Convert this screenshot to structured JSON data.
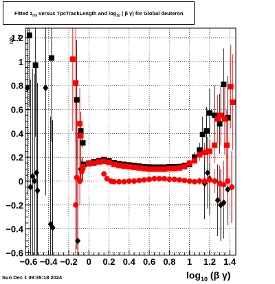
{
  "title": {
    "pre": "Fitted  z",
    "sub1": "I70",
    "mid": "  versus TpcTrackLength and log",
    "sub2": "10",
    "post": " ( β γ) for Global deuteron"
  },
  "datestamp": "Sun Dec  1 09:35:18 2024",
  "axes": {
    "ylabel_main": "z",
    "ylabel_sub": "I70",
    "xlabel_main": "log",
    "xlabel_sub": "10",
    "xlabel_post": "(β γ)"
  },
  "chart_data": {
    "type": "scatter",
    "xlim": [
      -0.63,
      1.46
    ],
    "ylim": [
      -0.62,
      1.28
    ],
    "x_ticks": [
      -0.6,
      -0.4,
      -0.2,
      0,
      0.2,
      0.4,
      0.6,
      0.8,
      1,
      1.2,
      1.4
    ],
    "x_tick_labels": [
      "−0.6",
      "−0.4",
      "−0.2",
      "0",
      "0.2",
      "0.4",
      "0.6",
      "0.8",
      "1",
      "1.2",
      "1.4"
    ],
    "y_ticks": [
      -0.6,
      -0.4,
      -0.2,
      0,
      0.2,
      0.4,
      0.6,
      0.8,
      1,
      1.2
    ],
    "y_tick_labels": [
      "−0.6",
      "−0.4",
      "−0.2",
      "0",
      "0.2",
      "0.4",
      "0.6",
      "0.8",
      "1",
      "1.2"
    ],
    "grid": true,
    "series": [
      {
        "color": "#000000",
        "marker": "square",
        "points": [
          {
            "x": -0.59,
            "y": 1.22,
            "e": 0.6
          },
          {
            "x": -0.53,
            "y": 0.97,
            "e": 0.6
          },
          {
            "x": -0.37,
            "y": 1.03,
            "e": 0.7
          },
          {
            "x": -0.12,
            "y": 0.68,
            "e": 0.5
          },
          {
            "x": -0.08,
            "y": 0.42,
            "e": 0.1
          },
          {
            "x": -0.06,
            "y": 0.32,
            "e": 0.04
          },
          {
            "x": -0.05,
            "y": 0.14,
            "e": 0.02
          },
          {
            "x": 0.0,
            "y": 0.15,
            "e": 0.02
          },
          {
            "x": 0.05,
            "y": 0.16,
            "e": 0.015
          },
          {
            "x": 0.1,
            "y": 0.17,
            "e": 0.015
          },
          {
            "x": 0.15,
            "y": 0.18,
            "e": 0.015
          },
          {
            "x": 0.2,
            "y": 0.17,
            "e": 0.01
          },
          {
            "x": 0.25,
            "y": 0.155,
            "e": 0.01
          },
          {
            "x": 0.3,
            "y": 0.145,
            "e": 0.01
          },
          {
            "x": 0.35,
            "y": 0.14,
            "e": 0.01
          },
          {
            "x": 0.4,
            "y": 0.135,
            "e": 0.01
          },
          {
            "x": 0.45,
            "y": 0.13,
            "e": 0.01
          },
          {
            "x": 0.5,
            "y": 0.125,
            "e": 0.01
          },
          {
            "x": 0.55,
            "y": 0.12,
            "e": 0.01
          },
          {
            "x": 0.6,
            "y": 0.118,
            "e": 0.01
          },
          {
            "x": 0.65,
            "y": 0.117,
            "e": 0.01
          },
          {
            "x": 0.7,
            "y": 0.117,
            "e": 0.01
          },
          {
            "x": 0.75,
            "y": 0.117,
            "e": 0.01
          },
          {
            "x": 0.8,
            "y": 0.12,
            "e": 0.01
          },
          {
            "x": 0.85,
            "y": 0.12,
            "e": 0.01
          },
          {
            "x": 0.9,
            "y": 0.122,
            "e": 0.01
          },
          {
            "x": 0.95,
            "y": 0.13,
            "e": 0.015
          },
          {
            "x": 1.0,
            "y": 0.14,
            "e": 0.02
          },
          {
            "x": 1.05,
            "y": 0.2,
            "e": 0.04
          },
          {
            "x": 1.1,
            "y": 0.26,
            "e": 0.06
          },
          {
            "x": 1.13,
            "y": 0.39,
            "e": 0.15
          },
          {
            "x": 1.17,
            "y": 0.42,
            "e": 0.2
          },
          {
            "x": 1.2,
            "y": 0.57,
            "e": 0.2
          },
          {
            "x": 1.25,
            "y": 0.55,
            "e": 0.25
          },
          {
            "x": 1.3,
            "y": 0.48,
            "e": 0.25
          },
          {
            "x": 1.34,
            "y": 0.81,
            "e": 0.3
          },
          {
            "x": 1.38,
            "y": 0.53,
            "e": 0.35
          }
        ]
      },
      {
        "color": "#000000",
        "marker": "diamond",
        "points": [
          {
            "x": -0.61,
            "y": 0.78,
            "e": 0.9
          },
          {
            "x": -0.58,
            "y": -0.05,
            "e": 0.9
          },
          {
            "x": -0.56,
            "y": 0.04,
            "e": 0.9
          },
          {
            "x": -0.54,
            "y": 0.0,
            "e": 0.9
          },
          {
            "x": -0.52,
            "y": 0.07,
            "e": 0.9
          },
          {
            "x": -0.51,
            "y": -0.08,
            "e": 0.9
          },
          {
            "x": -0.43,
            "y": 0.78,
            "e": 0.9
          },
          {
            "x": -0.38,
            "y": -0.36,
            "e": 0.9
          },
          {
            "x": -0.36,
            "y": -0.39,
            "e": 0.9
          },
          {
            "x": -0.11,
            "y": -0.5,
            "e": 0.9
          },
          {
            "x": -0.08,
            "y": 0.1,
            "e": 0.1
          },
          {
            "x": -0.06,
            "y": 0.1,
            "e": 0.1
          },
          {
            "x": 1.15,
            "y": -0.02,
            "e": 0.3
          },
          {
            "x": 1.18,
            "y": 0.07,
            "e": 0.3
          },
          {
            "x": 1.2,
            "y": 0.02,
            "e": 0.3
          },
          {
            "x": 1.28,
            "y": -0.16,
            "e": 0.3
          },
          {
            "x": 1.31,
            "y": -0.2,
            "e": 0.3
          },
          {
            "x": 1.34,
            "y": -0.18,
            "e": 0.3
          },
          {
            "x": 1.38,
            "y": -0.07,
            "e": 0.3
          },
          {
            "x": 1.42,
            "y": -0.05,
            "e": 0.3
          }
        ]
      },
      {
        "color": "#ff0000",
        "marker": "square",
        "points": [
          {
            "x": -0.16,
            "y": 1.02,
            "e": 0.6
          },
          {
            "x": -0.13,
            "y": 0.82,
            "e": 0.5
          },
          {
            "x": -0.09,
            "y": 0.48,
            "e": 0.3
          },
          {
            "x": -0.08,
            "y": 0.38,
            "e": 0.2
          },
          {
            "x": -0.06,
            "y": 0.12,
            "e": 0.05
          },
          {
            "x": 0.0,
            "y": 0.145,
            "e": 0.02
          },
          {
            "x": 0.05,
            "y": 0.15,
            "e": 0.02
          },
          {
            "x": 0.1,
            "y": 0.16,
            "e": 0.015
          },
          {
            "x": 0.15,
            "y": 0.165,
            "e": 0.015
          },
          {
            "x": 0.2,
            "y": 0.155,
            "e": 0.01
          },
          {
            "x": 0.25,
            "y": 0.14,
            "e": 0.01
          },
          {
            "x": 0.3,
            "y": 0.13,
            "e": 0.01
          },
          {
            "x": 0.35,
            "y": 0.125,
            "e": 0.01
          },
          {
            "x": 0.4,
            "y": 0.12,
            "e": 0.01
          },
          {
            "x": 0.45,
            "y": 0.115,
            "e": 0.01
          },
          {
            "x": 0.5,
            "y": 0.11,
            "e": 0.01
          },
          {
            "x": 0.55,
            "y": 0.105,
            "e": 0.01
          },
          {
            "x": 0.6,
            "y": 0.1,
            "e": 0.01
          },
          {
            "x": 0.65,
            "y": 0.1,
            "e": 0.01
          },
          {
            "x": 0.7,
            "y": 0.1,
            "e": 0.01
          },
          {
            "x": 0.75,
            "y": 0.1,
            "e": 0.01
          },
          {
            "x": 0.8,
            "y": 0.105,
            "e": 0.01
          },
          {
            "x": 0.85,
            "y": 0.105,
            "e": 0.01
          },
          {
            "x": 0.9,
            "y": 0.11,
            "e": 0.01
          },
          {
            "x": 0.95,
            "y": 0.12,
            "e": 0.015
          },
          {
            "x": 1.0,
            "y": 0.15,
            "e": 0.02
          },
          {
            "x": 1.05,
            "y": 0.17,
            "e": 0.03
          },
          {
            "x": 1.1,
            "y": 0.22,
            "e": 0.05
          },
          {
            "x": 1.15,
            "y": 0.24,
            "e": 0.08
          },
          {
            "x": 1.2,
            "y": 0.25,
            "e": 0.1
          },
          {
            "x": 1.25,
            "y": 0.3,
            "e": 0.15
          },
          {
            "x": 1.28,
            "y": 0.52,
            "e": 0.2
          },
          {
            "x": 1.31,
            "y": 0.55,
            "e": 0.25
          },
          {
            "x": 1.35,
            "y": 0.52,
            "e": 0.3
          },
          {
            "x": 1.37,
            "y": 0.3,
            "e": 0.3
          },
          {
            "x": 1.41,
            "y": 0.79,
            "e": 0.35
          },
          {
            "x": 1.43,
            "y": 0.66,
            "e": 0.4
          }
        ]
      },
      {
        "color": "#ff0000",
        "marker": "circle",
        "points": [
          {
            "x": -0.13,
            "y": -0.2,
            "e": 0.9
          },
          {
            "x": -0.12,
            "y": 0.03,
            "e": 0.6
          },
          {
            "x": -0.09,
            "y": 0.0,
            "e": 0.2
          },
          {
            "x": -0.07,
            "y": 0.08,
            "e": 0.1
          },
          {
            "x": 0.15,
            "y": 0.06,
            "e": 0.02
          },
          {
            "x": 0.18,
            "y": 0.02,
            "e": 0.015
          },
          {
            "x": 0.22,
            "y": 0.0,
            "e": 0.01
          },
          {
            "x": 0.25,
            "y": -0.005,
            "e": 0.01
          },
          {
            "x": 0.3,
            "y": -0.005,
            "e": 0.01
          },
          {
            "x": 0.35,
            "y": -0.005,
            "e": 0.01
          },
          {
            "x": 0.4,
            "y": 0.0,
            "e": 0.01
          },
          {
            "x": 0.45,
            "y": 0.0,
            "e": 0.01
          },
          {
            "x": 0.5,
            "y": 0.005,
            "e": 0.01
          },
          {
            "x": 0.55,
            "y": 0.01,
            "e": 0.01
          },
          {
            "x": 0.6,
            "y": 0.015,
            "e": 0.01
          },
          {
            "x": 0.65,
            "y": 0.02,
            "e": 0.01
          },
          {
            "x": 0.7,
            "y": 0.02,
            "e": 0.01
          },
          {
            "x": 0.75,
            "y": 0.02,
            "e": 0.01
          },
          {
            "x": 0.8,
            "y": 0.015,
            "e": 0.01
          },
          {
            "x": 0.85,
            "y": 0.015,
            "e": 0.01
          },
          {
            "x": 0.9,
            "y": 0.01,
            "e": 0.01
          },
          {
            "x": 0.95,
            "y": 0.005,
            "e": 0.01
          },
          {
            "x": 1.0,
            "y": 0.0,
            "e": 0.015
          },
          {
            "x": 1.05,
            "y": -0.005,
            "e": 0.02
          },
          {
            "x": 1.1,
            "y": 0.0,
            "e": 0.03
          },
          {
            "x": 1.15,
            "y": 0.0,
            "e": 0.05
          },
          {
            "x": 1.2,
            "y": 0.01,
            "e": 0.08
          },
          {
            "x": 1.25,
            "y": 0.0,
            "e": 0.1
          },
          {
            "x": 1.3,
            "y": -0.02,
            "e": 0.15
          },
          {
            "x": 1.34,
            "y": -0.03,
            "e": 0.2
          },
          {
            "x": 1.38,
            "y": 0.0,
            "e": 0.25
          },
          {
            "x": 1.42,
            "y": -0.05,
            "e": 0.3
          }
        ]
      }
    ]
  }
}
